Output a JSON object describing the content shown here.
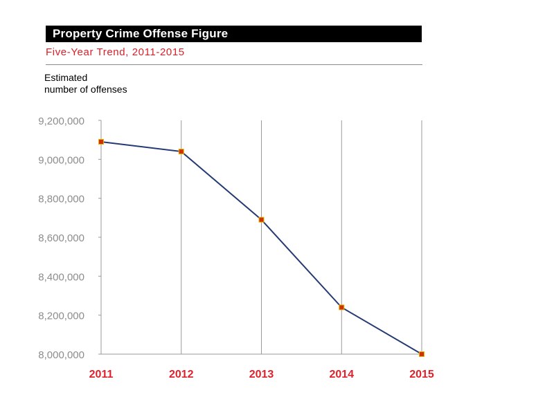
{
  "chart_data": {
    "type": "line",
    "title": "Property Crime Offense Figure",
    "subtitle": "Five-Year Trend, 2011-2015",
    "ylabel": "Estimated\nnumber of offenses",
    "xlabel": "",
    "categories": [
      "2011",
      "2012",
      "2013",
      "2014",
      "2015"
    ],
    "series": [
      {
        "values": [
          9090000,
          9040000,
          8690000,
          8240000,
          8000000
        ]
      }
    ],
    "ylim": [
      8000000,
      9200000
    ],
    "yticks": [
      8000000,
      8200000,
      8400000,
      8600000,
      8800000,
      9000000,
      9200000
    ],
    "ytick_labels": [
      "8,000,000",
      "8,200,000",
      "8,400,000",
      "8,600,000",
      "8,800,000",
      "9,000,000",
      "9,200,000"
    ],
    "grid": "vertical",
    "colors": {
      "line": "#253a73",
      "marker_fill": "#cc3300",
      "marker_border": "#e8b400",
      "title_bar": "#000000",
      "subtitle": "#d8202a",
      "xtick": "#e0202a",
      "ytick": "#8c8c8c",
      "grid": "#999999"
    }
  }
}
